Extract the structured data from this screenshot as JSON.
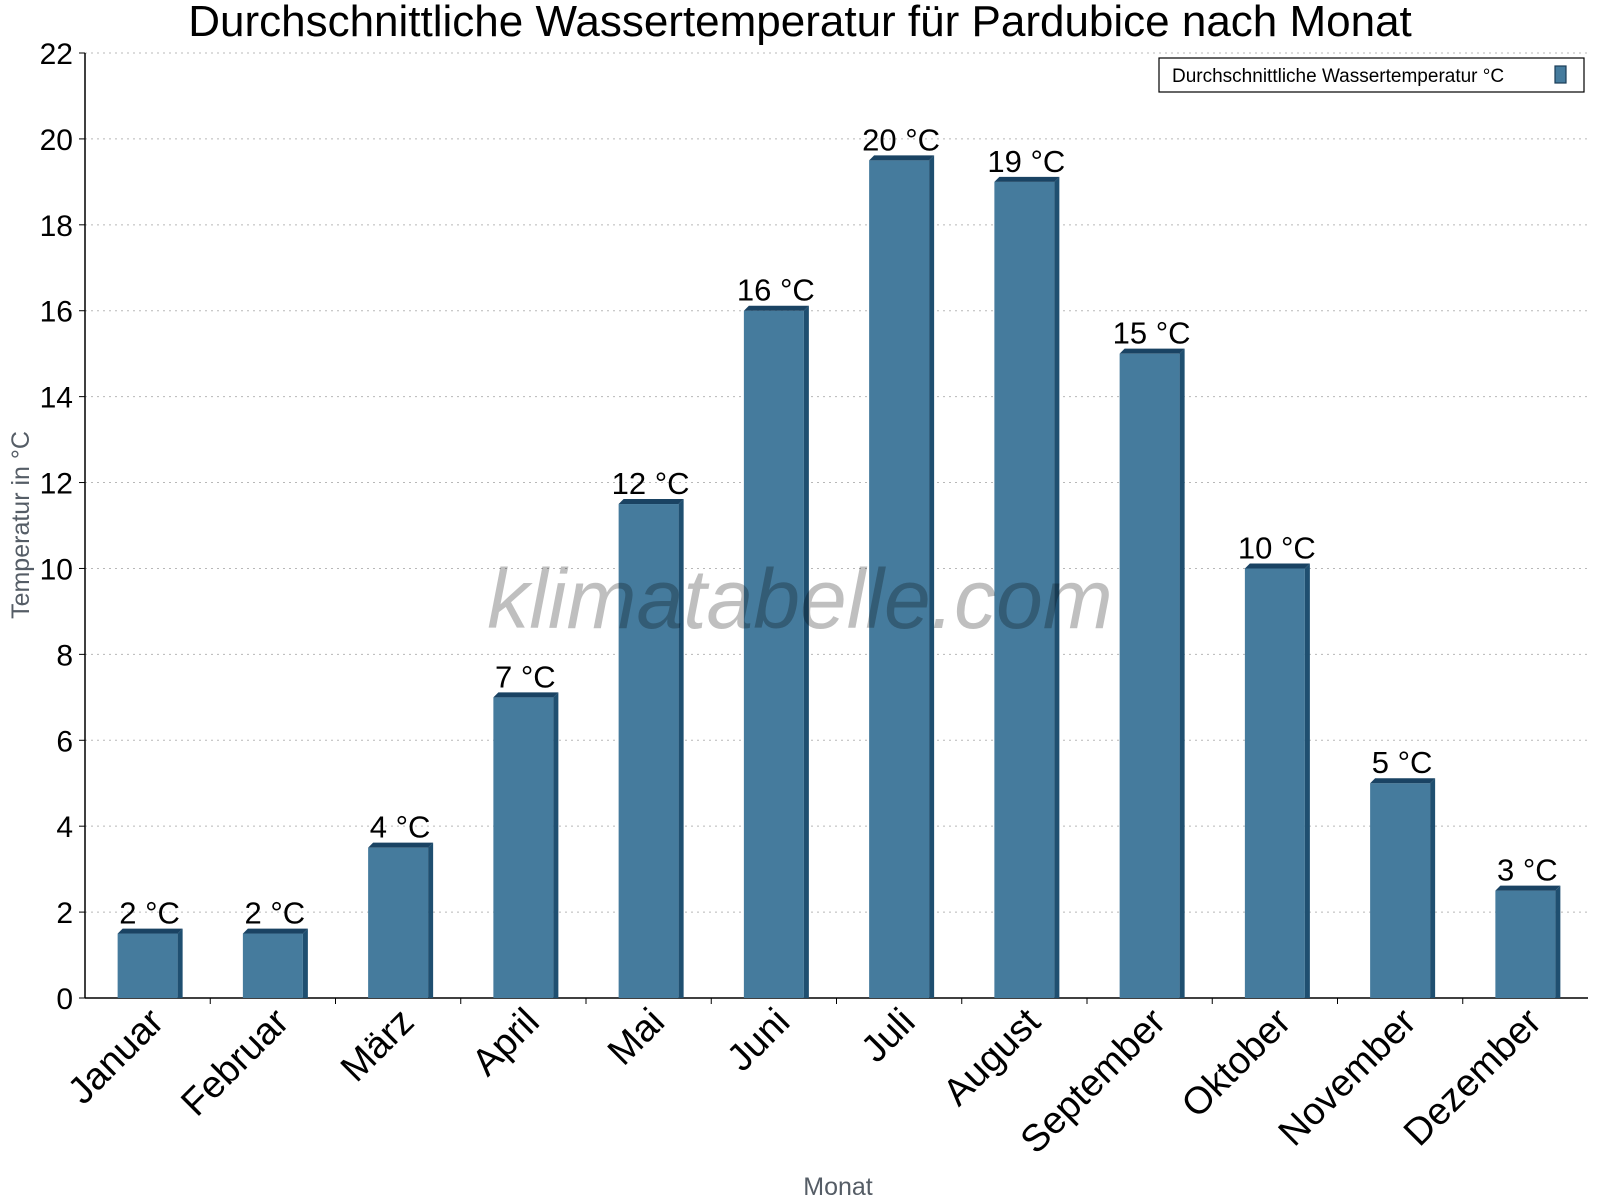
{
  "chart_data": {
    "type": "bar",
    "title": "Durchschnittliche Wassertemperatur für Pardubice nach Monat",
    "xlabel": "Monat",
    "ylabel": "Temperatur in °C",
    "ylim": [
      0,
      22
    ],
    "yticks": [
      0,
      2,
      4,
      6,
      8,
      10,
      12,
      14,
      16,
      18,
      20,
      22
    ],
    "grid": true,
    "legend_position": "top-right",
    "categories": [
      "Januar",
      "Februar",
      "März",
      "April",
      "Mai",
      "Juni",
      "Juli",
      "August",
      "September",
      "Oktober",
      "November",
      "Dezember"
    ],
    "series": [
      {
        "name": "Durchschnittliche Wassertemperatur °C",
        "color": "#457b9d",
        "values": [
          1.5,
          1.5,
          3.5,
          7,
          11.5,
          16,
          19.5,
          19,
          15,
          10,
          5,
          2.5
        ],
        "labels": [
          "2 °C",
          "2 °C",
          "4 °C",
          "7 °C",
          "12 °C",
          "16 °C",
          "20 °C",
          "19 °C",
          "15 °C",
          "10 °C",
          "5 °C",
          "3 °C"
        ]
      }
    ],
    "watermark": "klimatabelle.com"
  }
}
